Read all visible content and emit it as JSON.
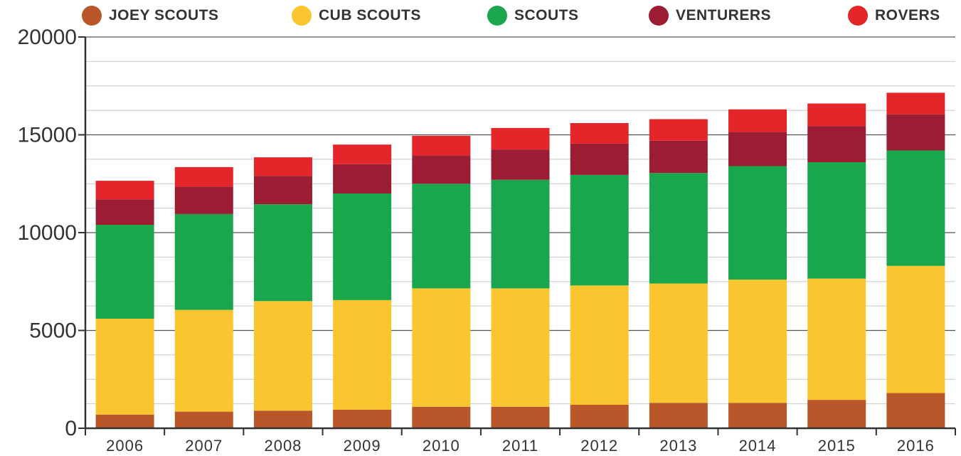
{
  "chart_data": {
    "type": "bar",
    "stacked": true,
    "title": "",
    "xlabel": "",
    "ylabel": "",
    "ylim": [
      0,
      20000
    ],
    "yticks": [
      0,
      5000,
      10000,
      15000,
      20000
    ],
    "ytick_labels": [
      "0",
      "5000",
      "10000",
      "15000",
      "20000"
    ],
    "grid": true,
    "legend_position": "top",
    "categories": [
      "2006",
      "2007",
      "2008",
      "2009",
      "2010",
      "2011",
      "2012",
      "2013",
      "2014",
      "2015",
      "2016"
    ],
    "series": [
      {
        "name": "JOEY SCOUTS",
        "color": "#b9562a",
        "values": [
          700,
          850,
          900,
          950,
          1100,
          1100,
          1200,
          1300,
          1300,
          1450,
          1800
        ]
      },
      {
        "name": "CUB SCOUTS",
        "color": "#fbc52f",
        "values": [
          4900,
          5200,
          5600,
          5600,
          6050,
          6050,
          6100,
          6100,
          6300,
          6200,
          6500
        ]
      },
      {
        "name": "SCOUTS",
        "color": "#1aa64d",
        "values": [
          4800,
          4900,
          4950,
          5450,
          5350,
          5550,
          5650,
          5650,
          5800,
          5950,
          5900
        ]
      },
      {
        "name": "VENTURERS",
        "color": "#9b1c33",
        "values": [
          1300,
          1400,
          1450,
          1500,
          1450,
          1550,
          1600,
          1650,
          1750,
          1850,
          1850
        ]
      },
      {
        "name": "ROVERS",
        "color": "#e4262a",
        "values": [
          950,
          1000,
          950,
          1000,
          1000,
          1100,
          1050,
          1100,
          1150,
          1150,
          1100
        ]
      }
    ]
  }
}
